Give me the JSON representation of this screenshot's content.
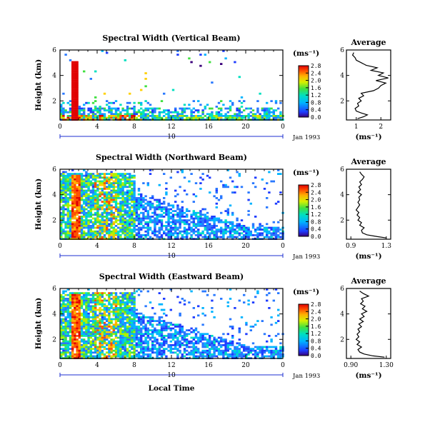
{
  "figure": {
    "x_axis_label": "Local Time",
    "date_label": "Jan 1993",
    "day_label": "10"
  },
  "chart_data": [
    {
      "type": "heatmap",
      "title": "Spectral Width (Vertical Beam)",
      "ylabel": "Height (km)",
      "x_ticks": [
        "0",
        "4",
        "8",
        "12",
        "16",
        "20",
        "0"
      ],
      "y_ticks": [
        "2",
        "4",
        "6"
      ],
      "xlim": [
        0,
        24
      ],
      "ylim": [
        0.5,
        6
      ],
      "colorbar": {
        "unit": "(ms⁻¹)",
        "ticks": [
          "0.0",
          "0.4",
          "0.8",
          "1.2",
          "1.6",
          "2.0",
          "2.4",
          "2.8"
        ],
        "range": [
          0,
          2.8
        ]
      },
      "average": {
        "title": "Average",
        "xlabel": "(ms⁻¹)",
        "x_ticks": [
          "1",
          "2"
        ],
        "y_ticks": [
          "2",
          "4",
          "6"
        ],
        "xlim": [
          0.6,
          2.4
        ],
        "profile": [
          [
            1.05,
            0.6
          ],
          [
            1.3,
            0.75
          ],
          [
            1.45,
            0.9
          ],
          [
            1.2,
            1.05
          ],
          [
            1.0,
            1.2
          ],
          [
            0.95,
            1.4
          ],
          [
            1.1,
            1.6
          ],
          [
            1.05,
            1.8
          ],
          [
            1.2,
            2.0
          ],
          [
            1.1,
            2.2
          ],
          [
            1.3,
            2.4
          ],
          [
            1.2,
            2.6
          ],
          [
            1.7,
            2.8
          ],
          [
            1.9,
            3.0
          ],
          [
            2.0,
            3.2
          ],
          [
            2.2,
            3.4
          ],
          [
            1.8,
            3.6
          ],
          [
            2.3,
            3.8
          ],
          [
            1.9,
            4.0
          ],
          [
            2.1,
            4.2
          ],
          [
            1.6,
            4.4
          ],
          [
            1.85,
            4.6
          ],
          [
            1.4,
            4.8
          ],
          [
            1.2,
            5.0
          ],
          [
            1.0,
            5.2
          ],
          [
            0.95,
            5.4
          ],
          [
            0.85,
            5.6
          ],
          [
            0.9,
            5.8
          ]
        ]
      }
    },
    {
      "type": "heatmap",
      "title": "Spectral Width (Northward Beam)",
      "ylabel": "Height (km)",
      "x_ticks": [
        "0",
        "4",
        "8",
        "12",
        "16",
        "20",
        "0"
      ],
      "y_ticks": [
        "2",
        "4",
        "6"
      ],
      "xlim": [
        0,
        24
      ],
      "ylim": [
        0.5,
        6
      ],
      "colorbar": {
        "unit": "(ms⁻¹)",
        "ticks": [
          "0.0",
          "0.4",
          "0.8",
          "1.2",
          "1.6",
          "2.0",
          "2.4",
          "2.8"
        ],
        "range": [
          0,
          2.8
        ]
      },
      "average": {
        "title": "Average",
        "xlabel": "(ms⁻¹)",
        "x_ticks": [
          "0.9",
          "1.3"
        ],
        "y_ticks": [
          "2",
          "4",
          "6"
        ],
        "xlim": [
          0.85,
          1.35
        ],
        "profile": [
          [
            1.3,
            0.6
          ],
          [
            1.2,
            0.7
          ],
          [
            1.08,
            0.85
          ],
          [
            1.03,
            1.0
          ],
          [
            1.02,
            1.2
          ],
          [
            1.05,
            1.4
          ],
          [
            1.0,
            1.6
          ],
          [
            1.02,
            1.8
          ],
          [
            0.98,
            2.0
          ],
          [
            1.0,
            2.2
          ],
          [
            0.97,
            2.4
          ],
          [
            0.99,
            2.6
          ],
          [
            0.96,
            2.8
          ],
          [
            0.98,
            3.0
          ],
          [
            1.0,
            3.2
          ],
          [
            0.98,
            3.4
          ],
          [
            1.0,
            3.6
          ],
          [
            0.99,
            3.8
          ],
          [
            1.02,
            4.0
          ],
          [
            0.98,
            4.2
          ],
          [
            1.01,
            4.4
          ],
          [
            0.99,
            4.6
          ],
          [
            1.02,
            4.8
          ],
          [
            1.0,
            5.0
          ],
          [
            1.03,
            5.2
          ],
          [
            1.05,
            5.4
          ],
          [
            1.02,
            5.6
          ],
          [
            1.0,
            5.8
          ]
        ]
      }
    },
    {
      "type": "heatmap",
      "title": "Spectral Width (Eastward Beam)",
      "ylabel": "Height (km)",
      "x_ticks": [
        "0",
        "4",
        "8",
        "12",
        "16",
        "20",
        "0"
      ],
      "y_ticks": [
        "2",
        "4",
        "6"
      ],
      "xlim": [
        0,
        24
      ],
      "ylim": [
        0.5,
        6
      ],
      "colorbar": {
        "unit": "(ms⁻¹)",
        "ticks": [
          "0.0",
          "0.4",
          "0.8",
          "1.2",
          "1.6",
          "2.0",
          "2.4",
          "2.8"
        ],
        "range": [
          0,
          2.8
        ]
      },
      "average": {
        "title": "Average",
        "xlabel": "(ms⁻¹)",
        "x_ticks": [
          "0.90",
          "1.30"
        ],
        "y_ticks": [
          "2",
          "4",
          "6"
        ],
        "xlim": [
          0.85,
          1.35
        ],
        "profile": [
          [
            1.28,
            0.6
          ],
          [
            1.15,
            0.7
          ],
          [
            1.05,
            0.85
          ],
          [
            1.0,
            1.0
          ],
          [
            0.98,
            1.2
          ],
          [
            1.02,
            1.4
          ],
          [
            0.97,
            1.6
          ],
          [
            1.0,
            1.8
          ],
          [
            0.96,
            2.0
          ],
          [
            0.99,
            2.2
          ],
          [
            0.97,
            2.4
          ],
          [
            1.0,
            2.6
          ],
          [
            0.98,
            2.8
          ],
          [
            1.02,
            3.0
          ],
          [
            0.99,
            3.2
          ],
          [
            1.04,
            3.4
          ],
          [
            1.0,
            3.6
          ],
          [
            1.05,
            3.8
          ],
          [
            1.02,
            4.0
          ],
          [
            1.08,
            4.2
          ],
          [
            1.03,
            4.4
          ],
          [
            1.06,
            4.6
          ],
          [
            1.01,
            4.8
          ],
          [
            1.04,
            5.0
          ],
          [
            1.02,
            5.2
          ],
          [
            1.1,
            5.4
          ],
          [
            1.04,
            5.6
          ],
          [
            1.0,
            5.8
          ]
        ]
      }
    }
  ]
}
